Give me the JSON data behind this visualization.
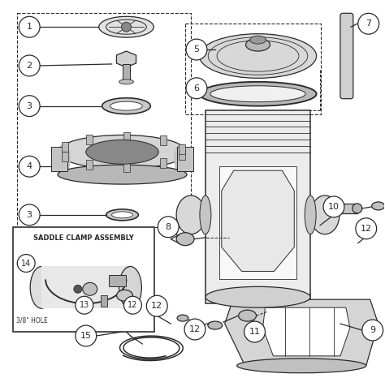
{
  "background_color": "#ffffff",
  "line_color": "#2a2a2a",
  "saddle_clamp_label": "SADDLE CLAMP ASSEMBLY",
  "hole_label": "3/8\" HOLE",
  "fig_width": 4.74,
  "fig_height": 4.82,
  "dpi": 100
}
